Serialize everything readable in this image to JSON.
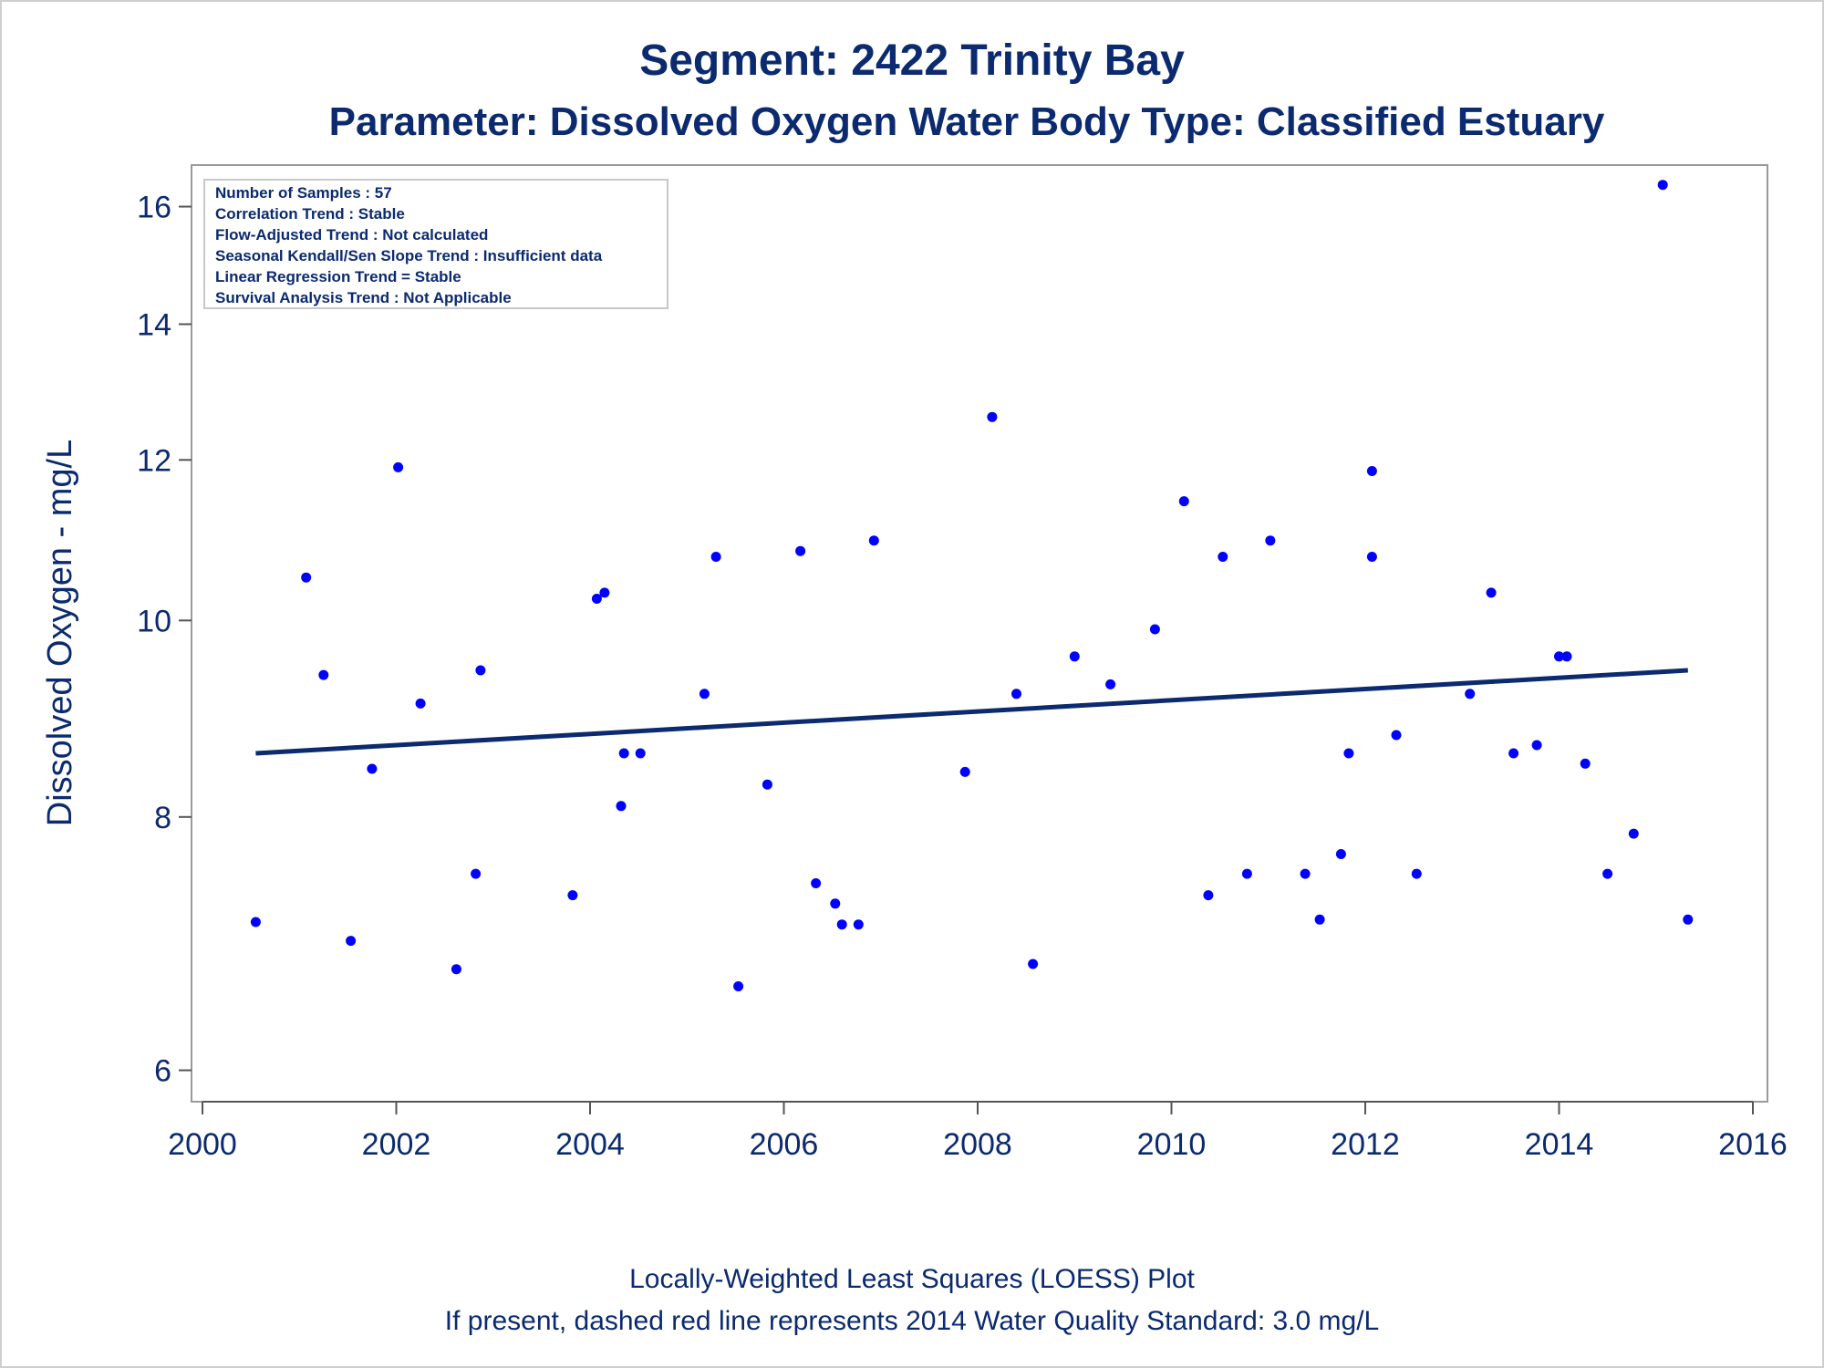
{
  "chart_data": {
    "type": "scatter",
    "title": "Segment: 2422  Trinity Bay",
    "subtitle": "Parameter: Dissolved Oxygen   Water Body Type: Classified Estuary",
    "xlabel": "",
    "ylabel": "Dissolved Oxygen - mg/L",
    "y_scale": "log",
    "xlim": [
      2000,
      2016
    ],
    "ylim": [
      5.85,
      16.6
    ],
    "x_ticks": [
      2000,
      2002,
      2004,
      2006,
      2008,
      2010,
      2012,
      2014,
      2016
    ],
    "y_ticks": [
      6,
      8,
      10,
      12,
      14,
      16
    ],
    "grid": false,
    "footnotes": [
      "Locally-Weighted Least Squares (LOESS) Plot",
      "If present, dashed red line represents 2014 Water Quality Standard: 3.0 mg/L"
    ],
    "stats_box": [
      "Number of Samples : 57",
      "Correlation Trend : Stable",
      "Flow-Adjusted Trend : Not calculated",
      "Seasonal Kendall/Sen Slope Trend : Insufficient data",
      "Linear Regression Trend = Stable",
      "Survival Analysis Trend : Not Applicable"
    ],
    "colors": {
      "points": "#0000ff",
      "trend": "#0b2a6f",
      "text": "#0b2a6f",
      "frame": "#9a9a9a"
    },
    "series": [
      {
        "type": "scatter",
        "points": [
          [
            2000.55,
            7.1
          ],
          [
            2001.07,
            10.5
          ],
          [
            2001.25,
            9.4
          ],
          [
            2001.53,
            6.95
          ],
          [
            2001.75,
            8.45
          ],
          [
            2002.02,
            11.9
          ],
          [
            2002.25,
            9.1
          ],
          [
            2002.62,
            6.73
          ],
          [
            2002.82,
            7.5
          ],
          [
            2002.87,
            9.45
          ],
          [
            2003.82,
            7.32
          ],
          [
            2004.07,
            10.25
          ],
          [
            2004.15,
            10.32
          ],
          [
            2004.32,
            8.1
          ],
          [
            2004.35,
            8.6
          ],
          [
            2004.52,
            8.6
          ],
          [
            2005.18,
            9.2
          ],
          [
            2005.3,
            10.75
          ],
          [
            2005.53,
            6.6
          ],
          [
            2005.83,
            8.3
          ],
          [
            2006.17,
            10.82
          ],
          [
            2006.33,
            7.42
          ],
          [
            2006.53,
            7.25
          ],
          [
            2006.6,
            7.08
          ],
          [
            2006.77,
            7.08
          ],
          [
            2006.93,
            10.95
          ],
          [
            2007.87,
            8.42
          ],
          [
            2008.15,
            12.6
          ],
          [
            2008.4,
            9.2
          ],
          [
            2008.57,
            6.77
          ],
          [
            2009.0,
            9.6
          ],
          [
            2009.37,
            9.3
          ],
          [
            2009.83,
            9.9
          ],
          [
            2010.13,
            11.45
          ],
          [
            2010.38,
            7.32
          ],
          [
            2010.53,
            10.75
          ],
          [
            2010.78,
            7.5
          ],
          [
            2011.02,
            10.95
          ],
          [
            2011.38,
            7.5
          ],
          [
            2011.53,
            7.12
          ],
          [
            2011.75,
            7.67
          ],
          [
            2011.83,
            8.6
          ],
          [
            2012.07,
            11.85
          ],
          [
            2012.07,
            10.75
          ],
          [
            2012.32,
            8.78
          ],
          [
            2012.53,
            7.5
          ],
          [
            2013.08,
            9.2
          ],
          [
            2013.3,
            10.32
          ],
          [
            2013.53,
            8.6
          ],
          [
            2013.77,
            8.68
          ],
          [
            2014.0,
            9.6
          ],
          [
            2014.08,
            9.6
          ],
          [
            2014.27,
            8.5
          ],
          [
            2014.5,
            7.5
          ],
          [
            2014.77,
            7.85
          ],
          [
            2015.07,
            16.4
          ],
          [
            2015.33,
            7.12
          ]
        ]
      },
      {
        "type": "line",
        "points": [
          [
            2000.55,
            8.6
          ],
          [
            2015.33,
            9.45
          ]
        ]
      }
    ]
  }
}
